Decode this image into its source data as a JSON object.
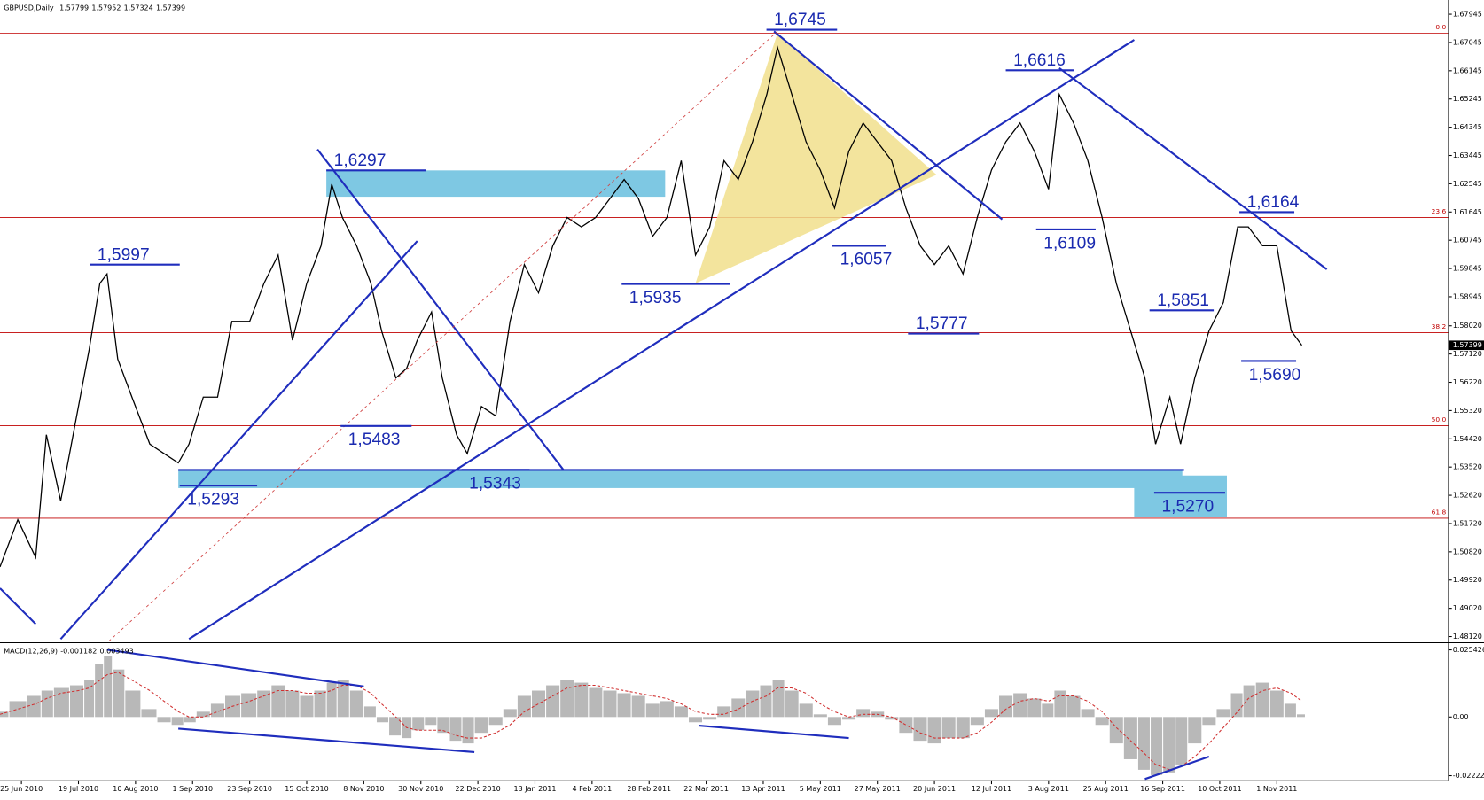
{
  "chart_data": [
    {
      "type": "line",
      "title": "GBPUSD,Daily",
      "ohlc": [
        1.57799,
        1.57952,
        1.57324,
        1.57399
      ],
      "xlim": [
        0,
        406
      ],
      "ylim": [
        1.47969,
        1.68397
      ],
      "yticks": [
        {
          "value": 1.67945,
          "label": "1.67945"
        },
        {
          "value": 1.67045,
          "label": "1.67045"
        },
        {
          "value": 1.66145,
          "label": "1.66145"
        },
        {
          "value": 1.65245,
          "label": "1.65245"
        },
        {
          "value": 1.64345,
          "label": "1.64345"
        },
        {
          "value": 1.63445,
          "label": "1.63445"
        },
        {
          "value": 1.62545,
          "label": "1.62545"
        },
        {
          "value": 1.61645,
          "label": "1.61645"
        },
        {
          "value": 1.60745,
          "label": "1.60745"
        },
        {
          "value": 1.59845,
          "label": "1.59845"
        },
        {
          "value": 1.58945,
          "label": "1.58945"
        },
        {
          "value": 1.5802,
          "label": "1.58020"
        },
        {
          "value": 1.5712,
          "label": "1.57120"
        },
        {
          "value": 1.5622,
          "label": "1.56220"
        },
        {
          "value": 1.5532,
          "label": "1.55320"
        },
        {
          "value": 1.5442,
          "label": "1.54420"
        },
        {
          "value": 1.5352,
          "label": "1.53520"
        },
        {
          "value": 1.5262,
          "label": "1.52620"
        },
        {
          "value": 1.5172,
          "label": "1.51720"
        },
        {
          "value": 1.5082,
          "label": "1.50820"
        },
        {
          "value": 1.4992,
          "label": "1.49920"
        },
        {
          "value": 1.4902,
          "label": "1.49020"
        },
        {
          "value": 1.4812,
          "label": "1.48120"
        }
      ],
      "xticks": [
        {
          "value": 6,
          "label": "25 Jun 2010"
        },
        {
          "value": 22,
          "label": "19 Jul 2010"
        },
        {
          "value": 38,
          "label": "10 Aug 2010"
        },
        {
          "value": 54,
          "label": "1 Sep 2010"
        },
        {
          "value": 70,
          "label": "23 Sep 2010"
        },
        {
          "value": 86,
          "label": "15 Oct 2010"
        },
        {
          "value": 102,
          "label": "8 Nov 2010"
        },
        {
          "value": 118,
          "label": "30 Nov 2010"
        },
        {
          "value": 134,
          "label": "22 Dec 2010"
        },
        {
          "value": 150,
          "label": "13 Jan 2011"
        },
        {
          "value": 166,
          "label": "4 Feb 2011"
        },
        {
          "value": 182,
          "label": "28 Feb 2011"
        },
        {
          "value": 198,
          "label": "22 Mar 2011"
        },
        {
          "value": 214,
          "label": "13 Apr 2011"
        },
        {
          "value": 230,
          "label": "5 May 2011"
        },
        {
          "value": 246,
          "label": "27 May 2011"
        },
        {
          "value": 262,
          "label": "20 Jun 2011"
        },
        {
          "value": 278,
          "label": "12 Jul 2011"
        },
        {
          "value": 294,
          "label": "3 Aug 2011"
        },
        {
          "value": 310,
          "label": "25 Aug 2011"
        },
        {
          "value": 326,
          "label": "16 Sep 2011"
        },
        {
          "value": 342,
          "label": "10 Oct 2011"
        },
        {
          "value": 358,
          "label": "1 Nov 2011"
        }
      ],
      "x": [
        0,
        5,
        10,
        13,
        17,
        22,
        25,
        28,
        30,
        33,
        37,
        42,
        46,
        50,
        53,
        57,
        61,
        65,
        70,
        74,
        78,
        82,
        86,
        90,
        93,
        96,
        100,
        104,
        107,
        111,
        114,
        117,
        121,
        124,
        128,
        131,
        135,
        139,
        143,
        147,
        151,
        155,
        159,
        163,
        167,
        171,
        175,
        179,
        183,
        187,
        191,
        195,
        199,
        203,
        207,
        211,
        215,
        218,
        222,
        226,
        230,
        234,
        238,
        242,
        246,
        250,
        254,
        258,
        262,
        266,
        270,
        274,
        278,
        282,
        286,
        290,
        294,
        297,
        301,
        305,
        309,
        313,
        317,
        321,
        324,
        328,
        331,
        335,
        339,
        343,
        347,
        350,
        354,
        358,
        362,
        365
      ],
      "series": [
        {
          "color": "#000000",
          "values": [
            1.5034,
            1.5184,
            1.5064,
            1.5455,
            1.5244,
            1.5545,
            1.5726,
            1.5937,
            1.5967,
            1.5696,
            1.5575,
            1.5425,
            1.5395,
            1.5365,
            1.5425,
            1.5575,
            1.5575,
            1.5816,
            1.5816,
            1.5937,
            1.6027,
            1.5756,
            1.5937,
            1.6057,
            1.6253,
            1.6147,
            1.6057,
            1.5937,
            1.5786,
            1.5636,
            1.5666,
            1.5756,
            1.5846,
            1.5636,
            1.5455,
            1.5395,
            1.5545,
            1.5515,
            1.5816,
            1.5997,
            1.5907,
            1.6057,
            1.6147,
            1.6117,
            1.6147,
            1.6207,
            1.6268,
            1.6207,
            1.6087,
            1.6147,
            1.6328,
            1.6027,
            1.6117,
            1.6328,
            1.6268,
            1.6388,
            1.6539,
            1.6689,
            1.6539,
            1.6388,
            1.6298,
            1.6177,
            1.6358,
            1.6448,
            1.6388,
            1.6328,
            1.6177,
            1.6057,
            1.5997,
            1.6057,
            1.5967,
            1.6147,
            1.6298,
            1.6388,
            1.6448,
            1.6358,
            1.6237,
            1.6539,
            1.6448,
            1.6328,
            1.6147,
            1.5937,
            1.5786,
            1.5636,
            1.5425,
            1.5575,
            1.5425,
            1.5636,
            1.5786,
            1.5876,
            1.6117,
            1.6117,
            1.6057,
            1.6057,
            1.5786,
            1.57399
          ]
        }
      ],
      "fib_levels": [
        {
          "label": "0.0",
          "value": 1.6734
        },
        {
          "label": "23.6",
          "value": 1.6147
        },
        {
          "label": "38.2",
          "value": 1.578
        },
        {
          "label": "50.0",
          "value": 1.5484
        },
        {
          "label": "61.8",
          "value": 1.5189
        }
      ],
      "fib_color": "#c00000",
      "zones": [
        {
          "x": [
            91.5,
            186.5
          ],
          "y": [
            1.6297,
            1.6213
          ],
          "color": "#7ec8e3"
        },
        {
          "x": [
            50,
            331.5
          ],
          "y": [
            1.5343,
            1.5285
          ],
          "color": "#7ec8e3"
        },
        {
          "x": [
            318,
            344
          ],
          "y": [
            1.5325,
            1.5192
          ],
          "color": "#7ec8e3"
        }
      ],
      "polygons": [
        {
          "x": [
            195,
            218,
            262.6
          ],
          "y": [
            1.5937,
            1.6734,
            1.6283
          ],
          "color": "#f1df8c"
        }
      ],
      "trendlines": [
        {
          "x": [
            0,
            10
          ],
          "y": [
            1.4966,
            1.4852
          ],
          "color": "#1f2dbd",
          "style": "solid"
        },
        {
          "x": [
            17,
            117
          ],
          "y": [
            1.4804,
            1.6072
          ],
          "color": "#1f2dbd",
          "style": "solid"
        },
        {
          "x": [
            53,
            318
          ],
          "y": [
            1.4804,
            1.6713
          ],
          "color": "#1f2dbd",
          "style": "solid"
        },
        {
          "x": [
            89,
            158
          ],
          "y": [
            1.6364,
            1.5343
          ],
          "color": "#1f2dbd",
          "style": "solid"
        },
        {
          "x": [
            217,
            281
          ],
          "y": [
            1.674,
            1.6141
          ],
          "color": "#1f2dbd",
          "style": "solid"
        },
        {
          "x": [
            297,
            372
          ],
          "y": [
            1.6623,
            1.5982
          ],
          "color": "#1f2dbd",
          "style": "solid"
        },
        {
          "x": [
            50,
            332
          ],
          "y": [
            1.5343,
            1.5343
          ],
          "color": "#1f2dbd",
          "style": "solid"
        },
        {
          "x": [
            30.5,
            218
          ],
          "y": [
            1.4797,
            1.674
          ],
          "color": "#d04040",
          "style": "dashed"
        }
      ],
      "annotations": [
        {
          "text": "1,6745",
          "value": 1.6745,
          "x": [
            214.9,
            234.7
          ],
          "position": "above"
        },
        {
          "text": "1,6616",
          "value": 1.6616,
          "x": [
            282,
            301
          ],
          "position": "above"
        },
        {
          "text": "1,6297",
          "value": 1.6297,
          "x": [
            91.5,
            119.4
          ],
          "position": "above"
        },
        {
          "text": "1,6164",
          "value": 1.6164,
          "x": [
            347.5,
            362.9
          ],
          "position": "above"
        },
        {
          "text": "1,5997",
          "value": 1.5997,
          "x": [
            25.2,
            50.4
          ],
          "position": "above"
        },
        {
          "text": "1,6057",
          "value": 1.6057,
          "x": [
            233.4,
            248.5
          ],
          "position": "below"
        },
        {
          "text": "1,6109",
          "value": 1.6109,
          "x": [
            290.5,
            307.2
          ],
          "position": "below"
        },
        {
          "text": "1,5935",
          "value": 1.5935,
          "x": [
            174.3,
            204.8
          ],
          "position": "below"
        },
        {
          "text": "1,5851",
          "value": 1.5851,
          "x": [
            322.3,
            340.3
          ],
          "position": "above"
        },
        {
          "text": "1,5777",
          "value": 1.5777,
          "x": [
            254.6,
            274.5
          ],
          "position": "above"
        },
        {
          "text": "1,5690",
          "value": 1.569,
          "x": [
            348,
            363.4
          ],
          "position": "below"
        },
        {
          "text": "1,5483",
          "value": 1.5483,
          "x": [
            95.5,
            115.4
          ],
          "position": "below"
        },
        {
          "text": "1,5343",
          "value": 1.5343,
          "x": [
            129.4,
            148.5
          ],
          "position": "below"
        },
        {
          "text": "1,5293",
          "value": 1.5293,
          "x": [
            50.4,
            72.1
          ],
          "position": "below"
        },
        {
          "text": "1,5270",
          "value": 1.527,
          "x": [
            323.6,
            343.5
          ],
          "position": "below"
        }
      ]
    },
    {
      "type": "bar",
      "title": "MACD(12,26,9)",
      "readouts": [
        -0.001182,
        0.003493
      ],
      "ylim": [
        -0.024,
        0.0276
      ],
      "yticks": [
        {
          "value": 0.025426,
          "label": "0.025426"
        },
        {
          "value": 0,
          "label": "0.00"
        },
        {
          "value": -0.022223,
          "label": "-0.022223"
        }
      ],
      "x": [
        0,
        5,
        10,
        13,
        17,
        22,
        25,
        28,
        30,
        33,
        37,
        42,
        46,
        50,
        53,
        57,
        61,
        65,
        70,
        74,
        78,
        82,
        86,
        90,
        93,
        96,
        100,
        104,
        107,
        111,
        114,
        117,
        121,
        124,
        128,
        131,
        135,
        139,
        143,
        147,
        151,
        155,
        159,
        163,
        167,
        171,
        175,
        179,
        183,
        187,
        191,
        195,
        199,
        203,
        207,
        211,
        215,
        218,
        222,
        226,
        230,
        234,
        238,
        242,
        246,
        250,
        254,
        258,
        262,
        266,
        270,
        274,
        278,
        282,
        286,
        290,
        294,
        297,
        301,
        305,
        309,
        313,
        317,
        321,
        324,
        328,
        331,
        335,
        339,
        343,
        347,
        350,
        354,
        358,
        362,
        365
      ],
      "series": [
        {
          "color": "#b8b8b8",
          "values": [
            0.002,
            0.006,
            0.008,
            0.01,
            0.011,
            0.012,
            0.014,
            0.02,
            0.023,
            0.018,
            0.01,
            0.003,
            -0.002,
            -0.003,
            -0.002,
            0.002,
            0.005,
            0.008,
            0.009,
            0.01,
            0.012,
            0.01,
            0.008,
            0.01,
            0.013,
            0.014,
            0.01,
            0.004,
            -0.002,
            -0.007,
            -0.008,
            -0.005,
            -0.003,
            -0.006,
            -0.009,
            -0.01,
            -0.006,
            -0.003,
            0.003,
            0.008,
            0.01,
            0.012,
            0.014,
            0.013,
            0.011,
            0.01,
            0.009,
            0.008,
            0.005,
            0.006,
            0.004,
            -0.002,
            -0.001,
            0.004,
            0.007,
            0.01,
            0.012,
            0.014,
            0.01,
            0.005,
            0.001,
            -0.003,
            -0.001,
            0.003,
            0.002,
            -0.001,
            -0.006,
            -0.009,
            -0.01,
            -0.008,
            -0.008,
            -0.003,
            0.003,
            0.008,
            0.009,
            0.007,
            0.005,
            0.01,
            0.008,
            0.003,
            -0.003,
            -0.01,
            -0.016,
            -0.02,
            -0.022,
            -0.021,
            -0.018,
            -0.01,
            -0.003,
            0.003,
            0.009,
            0.012,
            0.013,
            0.01,
            0.005,
            0.001
          ]
        },
        {
          "color": "#d03030",
          "style": "dashed",
          "values": [
            0.001,
            0.003,
            0.005,
            0.007,
            0.009,
            0.01,
            0.011,
            0.014,
            0.016,
            0.017,
            0.014,
            0.01,
            0.006,
            0.002,
            0,
            0,
            0.002,
            0.004,
            0.006,
            0.008,
            0.01,
            0.01,
            0.009,
            0.009,
            0.01,
            0.012,
            0.012,
            0.009,
            0.005,
            0,
            -0.004,
            -0.005,
            -0.005,
            -0.005,
            -0.007,
            -0.008,
            -0.008,
            -0.006,
            -0.003,
            0.002,
            0.005,
            0.008,
            0.011,
            0.012,
            0.012,
            0.011,
            0.01,
            0.009,
            0.008,
            0.007,
            0.005,
            0.002,
            0.001,
            0.001,
            0.003,
            0.006,
            0.008,
            0.011,
            0.011,
            0.009,
            0.005,
            0.002,
            0,
            0.001,
            0.001,
            0,
            -0.003,
            -0.006,
            -0.008,
            -0.008,
            -0.008,
            -0.006,
            -0.002,
            0.003,
            0.006,
            0.007,
            0.006,
            0.008,
            0.008,
            0.006,
            0.002,
            -0.004,
            -0.009,
            -0.014,
            -0.018,
            -0.02,
            -0.019,
            -0.015,
            -0.01,
            -0.004,
            0.002,
            0.007,
            0.01,
            0.011,
            0.009,
            0.006
          ]
        }
      ],
      "trendlines": [
        {
          "x": [
            30,
            102
          ],
          "y": [
            0.0255,
            0.0116
          ],
          "color": "#1f2dbd",
          "style": "solid"
        },
        {
          "x": [
            50,
            133
          ],
          "y": [
            -0.0044,
            -0.0133
          ],
          "color": "#1f2dbd",
          "style": "solid"
        },
        {
          "x": [
            196,
            238
          ],
          "y": [
            -0.0033,
            -0.008
          ],
          "color": "#1f2dbd",
          "style": "solid"
        },
        {
          "x": [
            321,
            339
          ],
          "y": [
            -0.0235,
            -0.015
          ],
          "color": "#1f2dbd",
          "style": "solid"
        }
      ]
    }
  ]
}
